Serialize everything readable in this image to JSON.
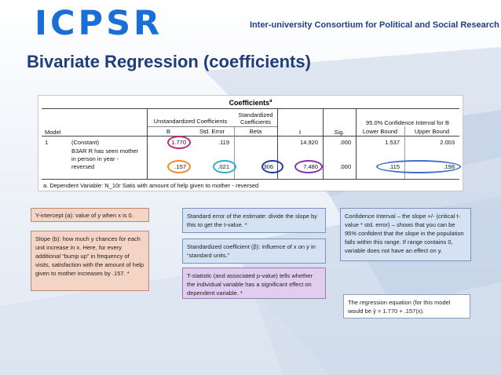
{
  "header": {
    "logo_text": "ICPSR",
    "org_name": "Inter-university Consortium for Political and Social Research"
  },
  "slide": {
    "title": "Bivariate Regression (coefficients)"
  },
  "table": {
    "title": "Coefficients",
    "title_sup": "a",
    "group_headers": {
      "unstd": "Unstandardized Coefficients",
      "std_line1": "Standardized",
      "std_line2": "Coefficients",
      "ci": "95.0% Confidence Interval for B"
    },
    "col_headers": {
      "model": "Model",
      "b": "B",
      "std_error": "Std. Error",
      "beta": "Beta",
      "t": "t",
      "sig": "Sig.",
      "lower": "Lower Bound",
      "upper": "Upper Bound"
    },
    "rows": [
      {
        "model": "1",
        "predictor": "(Constant)",
        "b": "1.770",
        "std_error": ".119",
        "beta": "",
        "t": "14.920",
        "sig": ".000",
        "lower": "1.537",
        "upper": "2.003"
      },
      {
        "model": "",
        "predictor_lines": [
          "B3AR R has seen mother",
          "in person in year -",
          "reversed"
        ],
        "b": ".157",
        "std_error": ".021",
        "beta": ".306",
        "t": "7.480",
        "sig": ".000",
        "lower": ".115",
        "upper": ".198"
      }
    ],
    "footnote": "a. Dependent Variable: N_10r Satis with amount of help given to mother - reversed",
    "circle_colors": {
      "b_constant": "#c0287a",
      "b_slope": "#f08c28",
      "std_error": "#2ab0c8",
      "beta": "#1f3aa0",
      "t": "#8a2fb0",
      "ci": "#3f6fd0"
    }
  },
  "notes": {
    "intercept": "Y-intercept (a): value of y when x is 0.",
    "slope": "Slope (b): how much y chances for each unit increase in x. Here, for every additional “bump up” in frequency of visits, satisfaction with the amount of help given to mother increases by .157. *",
    "std_error": "Standard error of the estimate: divide the slope by this to get the t-value. *",
    "std_coef": "Standardized coefficient (β): influence of x on y in “standard units.”",
    "t_stat": "T-statistic (and associated p-value) tells whether the individual variable has a significant effect on dependent variable. *",
    "ci": "Confidence Interval – the slope +/- (critical t-value * std. error) – shows that you can be 95% confident that the slope in the population falls within this range.  If range contains 0, variable does not have an effect on y.",
    "equation": "The regression equation (for this model would be ŷ = 1.770 + .157(x)."
  }
}
